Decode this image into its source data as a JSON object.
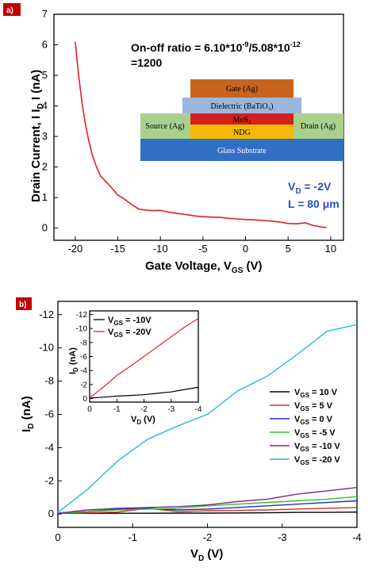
{
  "panel_a": {
    "label": "a)",
    "annotation_line1": "On-off ratio = 6.10*10",
    "annotation_exp1": "-9",
    "annotation_mid": "/5.08*10",
    "annotation_exp2": "-12",
    "annotation_line2": "=1200",
    "vd_main": "V",
    "vd_sub": "D",
    "vd_rest": " = -2V",
    "length_label": "L = 80 μm",
    "device_layers": {
      "gate": "Gate (Ag)",
      "dielectric": "Dielectric (BaTiO₃)",
      "mos2": "MoS₂",
      "ndg": "NDG",
      "source": "Source (Ag)",
      "drain": "Drain (Ag)",
      "substrate": "Glass Substrate"
    },
    "colors": {
      "gate": "#c8641e",
      "dielectric": "#9bb6de",
      "mos2": "#d42020",
      "ndg": "#f5b800",
      "electrode": "#a9d18e",
      "substrate": "#2f6fc4",
      "curve": "#e02020"
    },
    "chart_data": {
      "type": "line",
      "xlabel_main": "Gate Voltage, V",
      "xlabel_sub": "GS",
      "xlabel_end": " (V)",
      "ylabel": "Drain Current, I I",
      "ylabel_sub": "D",
      "ylabel_end": " I (nA)",
      "xlim": [
        -22.5,
        11.5
      ],
      "ylim": [
        -0.4,
        7
      ],
      "xticks": [
        -20,
        -15,
        -10,
        -5,
        0,
        5,
        10
      ],
      "yticks": [
        0,
        1,
        2,
        3,
        4,
        5,
        6,
        7
      ],
      "series": [
        {
          "x": [
            -20,
            -19.6,
            -19.2,
            -18.8,
            -18.4,
            -18,
            -17.5,
            -17,
            -16.5,
            -16,
            -15.5,
            -15,
            -14.5,
            -14,
            -13.5,
            -13,
            -12.5,
            -12,
            -11,
            -10,
            -9,
            -8,
            -7,
            -6,
            -5,
            -4,
            -3,
            -2,
            -1,
            0,
            1,
            2,
            3,
            4,
            5,
            6,
            7,
            8,
            9,
            9.5
          ],
          "y": [
            6.1,
            5.0,
            4.1,
            3.4,
            2.85,
            2.4,
            2.0,
            1.7,
            1.55,
            1.4,
            1.25,
            1.08,
            1.0,
            0.9,
            0.8,
            0.7,
            0.62,
            0.6,
            0.57,
            0.58,
            0.52,
            0.48,
            0.44,
            0.4,
            0.37,
            0.36,
            0.35,
            0.32,
            0.3,
            0.28,
            0.27,
            0.25,
            0.23,
            0.2,
            0.15,
            0.14,
            0.17,
            0.08,
            0.03,
            0.02
          ]
        }
      ]
    }
  },
  "panel_b": {
    "label": "b)",
    "chart_data": {
      "type": "line",
      "xlabel_main": "V",
      "xlabel_sub": "D",
      "xlabel_end": " (V)",
      "ylabel_main": "I",
      "ylabel_sub": "D",
      "ylabel_end": " (nA)",
      "xlim": [
        0,
        -4
      ],
      "ylim": [
        0.8,
        -12.8
      ],
      "xticks": [
        0,
        -1,
        -2,
        -3,
        -4
      ],
      "xtick_labels": [
        "0",
        "-1",
        "-2",
        "-3",
        "-4"
      ],
      "yticks": [
        0,
        -2,
        -4,
        -6,
        -8,
        -10,
        -12
      ],
      "ytick_labels": [
        "0",
        "-2",
        "-4",
        "-6",
        "-8",
        "-10",
        "-12"
      ],
      "legend_position": "center-right",
      "series": [
        {
          "name_main": "V",
          "name_sub": "GS",
          "name_end": "= 10 V",
          "color": "#000000",
          "x": [
            0,
            -0.4,
            -0.8,
            -1.2,
            -1.6,
            -2,
            -2.4,
            -2.8,
            -3.2,
            -3.6,
            -4
          ],
          "y": [
            -0.05,
            -0.05,
            -0.05,
            -0.05,
            -0.06,
            -0.06,
            -0.07,
            -0.08,
            -0.1,
            -0.1,
            -0.12
          ]
        },
        {
          "name_main": "V",
          "name_sub": "GS",
          "name_end": "= 5 V",
          "color": "#d03030",
          "x": [
            0,
            -0.4,
            -0.8,
            -1.2,
            -1.6,
            -2,
            -2.4,
            -2.8,
            -3.2,
            -3.6,
            -4
          ],
          "y": [
            -0.05,
            -0.08,
            -0.12,
            -0.35,
            -0.15,
            -0.2,
            -0.22,
            -0.25,
            -0.3,
            -0.35,
            -0.4
          ]
        },
        {
          "name_main": "V",
          "name_sub": "GS",
          "name_end": "= 0 V",
          "color": "#2030b0",
          "x": [
            0,
            -0.4,
            -0.8,
            -1.2,
            -1.6,
            -2,
            -2.4,
            -2.8,
            -3.2,
            -3.6,
            -4
          ],
          "y": [
            -0.05,
            -0.15,
            -0.3,
            -0.35,
            -0.25,
            -0.3,
            -0.4,
            -0.5,
            -0.6,
            -0.7,
            -0.8
          ]
        },
        {
          "name_main": "V",
          "name_sub": "GS",
          "name_end": "= -5 V",
          "color": "#30c030",
          "x": [
            0,
            -0.4,
            -0.8,
            -1.2,
            -1.6,
            -2,
            -2.4,
            -2.8,
            -3.2,
            -3.6,
            -4
          ],
          "y": [
            -0.05,
            -0.15,
            -0.25,
            -0.3,
            -0.35,
            -0.5,
            -0.6,
            -0.7,
            -0.8,
            -0.9,
            -1.05
          ]
        },
        {
          "name_main": "V",
          "name_sub": "GS",
          "name_end": "= -10 V",
          "color": "#7a2a8a",
          "x": [
            0,
            -0.4,
            -0.8,
            -1.2,
            -1.6,
            -2,
            -2.4,
            -2.8,
            -3.2,
            -3.6,
            -4
          ],
          "y": [
            -0.05,
            -0.25,
            -0.35,
            -0.4,
            -0.45,
            -0.55,
            -0.75,
            -0.9,
            -1.2,
            -1.4,
            -1.6
          ]
        },
        {
          "name_main": "V",
          "name_sub": "GS",
          "name_end": "= -20 V",
          "color": "#29b6e8",
          "x": [
            0,
            -0.4,
            -0.8,
            -1.2,
            -1.6,
            -2,
            -2.4,
            -2.8,
            -3.2,
            -3.6,
            -4
          ],
          "y": [
            -0.1,
            -1.5,
            -3.2,
            -4.5,
            -5.3,
            -6.0,
            -7.4,
            -8.3,
            -9.6,
            -11.0,
            -11.4
          ]
        }
      ]
    },
    "inset": {
      "chart_data": {
        "type": "line",
        "xlabel_main": "V",
        "xlabel_sub": "D",
        "xlabel_end": " (V)",
        "ylabel_main": "I",
        "ylabel_sub": "D",
        "ylabel_end": " (nA)",
        "xlim": [
          0,
          -4
        ],
        "ylim": [
          0.5,
          -12.5
        ],
        "xticks": [
          0,
          -1,
          -2,
          -3,
          -4
        ],
        "xtick_labels": [
          "0",
          "-1",
          "-2",
          "-3",
          "-4"
        ],
        "yticks": [
          0,
          -2,
          -4,
          -6,
          -8,
          -10,
          -12
        ],
        "ytick_labels": [
          "0",
          "-2",
          "-4",
          "-6",
          "-8",
          "-10",
          "-12"
        ],
        "series": [
          {
            "name_main": "V",
            "name_sub": "GS",
            "name_end": " = -10V",
            "color": "#000000",
            "x": [
              0,
              -0.5,
              -1,
              -1.5,
              -2,
              -2.5,
              -3,
              -3.5,
              -4
            ],
            "y": [
              -0.05,
              -0.2,
              -0.35,
              -0.45,
              -0.55,
              -0.75,
              -0.95,
              -1.3,
              -1.6
            ]
          },
          {
            "name_main": "V",
            "name_sub": "GS",
            "name_end": " = -20V",
            "color": "#e02020",
            "x": [
              0,
              -0.5,
              -1,
              -1.5,
              -2,
              -2.5,
              -3,
              -3.5,
              -4
            ],
            "y": [
              -0.1,
              -1.6,
              -3.3,
              -4.6,
              -6.0,
              -7.4,
              -8.8,
              -10.2,
              -11.4
            ]
          }
        ]
      }
    }
  }
}
